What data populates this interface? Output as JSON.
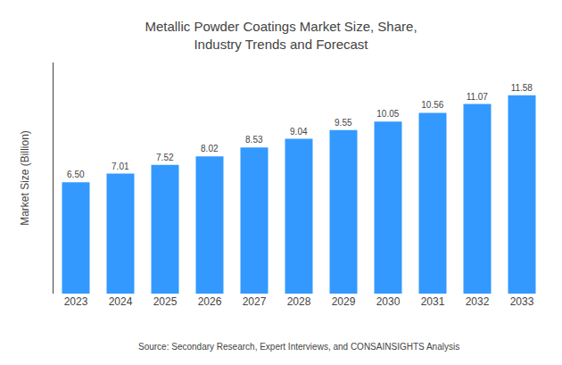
{
  "chart_data": {
    "type": "bar",
    "title": "Metallic Powder Coatings Market Size, Share,\nIndustry Trends and Forecast",
    "ylabel": "Market Size (Billion)",
    "annotations": [
      "Source: Secondary Research, Expert Interviews, and CONSAINSIGHTS Analysis"
    ],
    "categories": [
      "2023",
      "2024",
      "2025",
      "2026",
      "2027",
      "2028",
      "2029",
      "2030",
      "2031",
      "2032",
      "2033"
    ],
    "values": [
      6.5,
      7.01,
      7.52,
      8.02,
      8.53,
      9.04,
      9.55,
      10.05,
      10.56,
      11.07,
      11.58
    ],
    "value_labels": [
      "6.50",
      "7.01",
      "7.52",
      "8.02",
      "8.53",
      "9.04",
      "9.55",
      "10.05",
      "10.56",
      "11.07",
      "11.58"
    ],
    "data_labels": true,
    "color": "#3399FF",
    "ylim": [
      0,
      13.5
    ],
    "yticks": [],
    "tick_labels": "x",
    "grid": false
  }
}
